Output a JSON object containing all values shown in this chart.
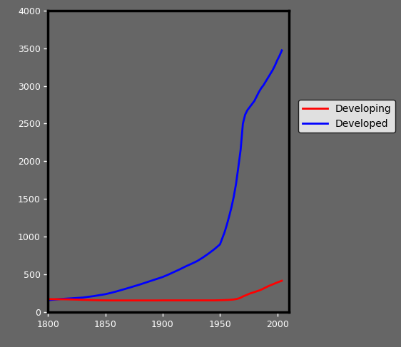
{
  "background_color": "#666666",
  "plot_bg_color": "#666666",
  "xlim": [
    1800,
    2010
  ],
  "ylim": [
    0,
    4000
  ],
  "xticks": [
    1800,
    1850,
    1900,
    1950,
    2000
  ],
  "yticks": [
    0,
    500,
    1000,
    1500,
    2000,
    2500,
    3000,
    3500,
    4000
  ],
  "legend_labels": [
    "Developing",
    "Developed"
  ],
  "legend_colors": [
    "#ff0000",
    "#0000ff"
  ],
  "line_width": 2.0,
  "developed_x": [
    1800,
    1805,
    1810,
    1815,
    1820,
    1825,
    1830,
    1835,
    1840,
    1845,
    1850,
    1855,
    1860,
    1865,
    1870,
    1875,
    1880,
    1885,
    1890,
    1895,
    1900,
    1905,
    1910,
    1915,
    1920,
    1925,
    1930,
    1935,
    1940,
    1945,
    1950,
    1952,
    1954,
    1956,
    1958,
    1960,
    1962,
    1964,
    1966,
    1968,
    1970,
    1972,
    1974,
    1976,
    1978,
    1980,
    1982,
    1984,
    1986,
    1988,
    1990,
    1992,
    1994,
    1996,
    1998,
    2000,
    2002,
    2004
  ],
  "developed_y": [
    160,
    168,
    175,
    180,
    185,
    190,
    195,
    205,
    215,
    228,
    240,
    258,
    278,
    300,
    322,
    345,
    368,
    393,
    418,
    443,
    468,
    500,
    535,
    570,
    608,
    642,
    678,
    725,
    778,
    835,
    900,
    980,
    1060,
    1160,
    1270,
    1390,
    1530,
    1700,
    1920,
    2150,
    2500,
    2620,
    2680,
    2720,
    2760,
    2800,
    2860,
    2920,
    2970,
    3010,
    3060,
    3110,
    3160,
    3210,
    3270,
    3340,
    3400,
    3470
  ],
  "developing_x": [
    1800,
    1805,
    1810,
    1815,
    1820,
    1825,
    1830,
    1835,
    1840,
    1845,
    1850,
    1855,
    1860,
    1865,
    1870,
    1875,
    1880,
    1885,
    1890,
    1895,
    1900,
    1905,
    1910,
    1915,
    1920,
    1925,
    1930,
    1935,
    1940,
    1945,
    1950,
    1952,
    1954,
    1956,
    1958,
    1960,
    1962,
    1964,
    1966,
    1968,
    1970,
    1972,
    1974,
    1976,
    1978,
    1980,
    1982,
    1984,
    1986,
    1988,
    1990,
    1992,
    1994,
    1996,
    1998,
    2000,
    2002,
    2004
  ],
  "developing_y": [
    175,
    174,
    173,
    172,
    170,
    168,
    165,
    163,
    161,
    159,
    158,
    157,
    157,
    157,
    157,
    157,
    157,
    157,
    157,
    157,
    158,
    158,
    158,
    158,
    158,
    158,
    158,
    158,
    158,
    158,
    160,
    161,
    162,
    163,
    165,
    167,
    170,
    175,
    182,
    193,
    210,
    222,
    235,
    248,
    258,
    268,
    278,
    288,
    300,
    315,
    330,
    345,
    358,
    370,
    383,
    395,
    407,
    418
  ],
  "spine_color": "#000000",
  "tick_label_color": "#ffffff",
  "legend_bg": "#ffffff",
  "legend_edge": "#000000"
}
